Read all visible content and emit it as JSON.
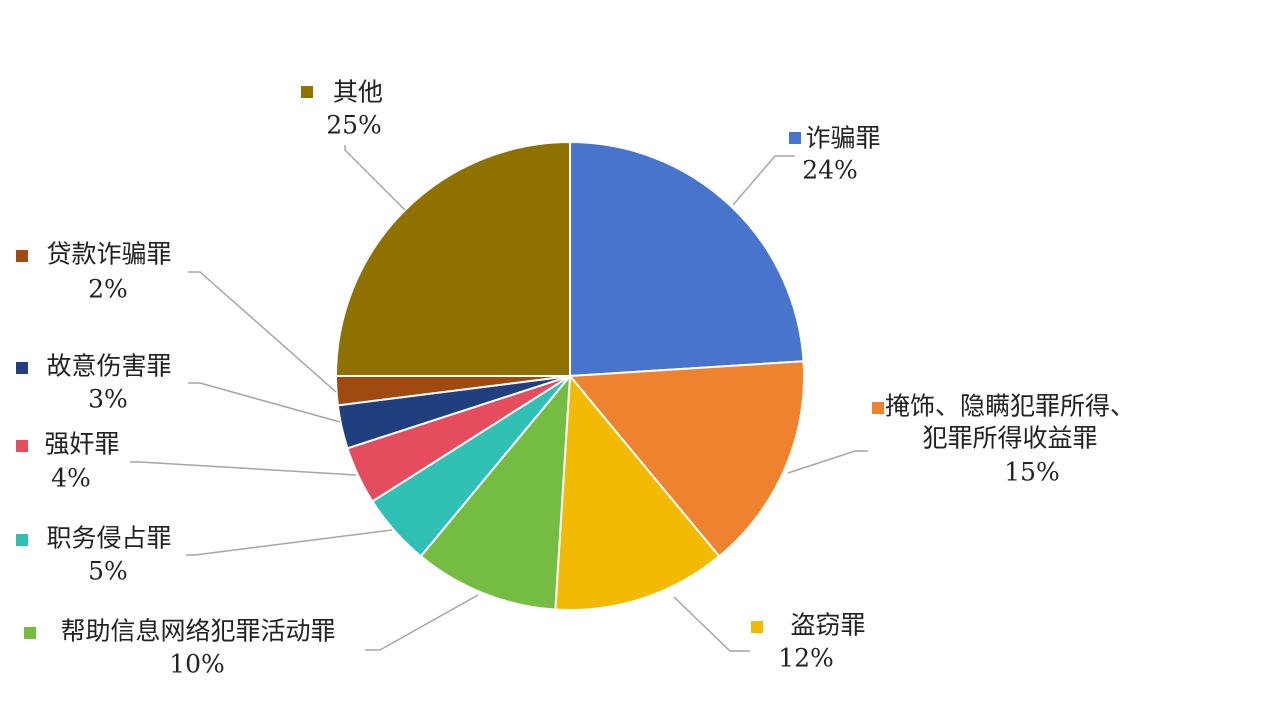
{
  "chart_data": {
    "type": "pie",
    "title": "",
    "slices": [
      {
        "name": "诈骗罪",
        "percent_label": "24%",
        "value": 24,
        "color": "#4874CB"
      },
      {
        "name": "掩饰、隐瞒犯罪所得、犯罪所得收益罪",
        "name_lines": [
          "掩饰、隐瞒犯罪所得、",
          "犯罪所得收益罪"
        ],
        "percent_label": "15%",
        "value": 15,
        "color": "#EE822F"
      },
      {
        "name": "盗窃罪",
        "percent_label": "12%",
        "value": 12,
        "color": "#F2BA02"
      },
      {
        "name": "帮助信息网络犯罪活动罪",
        "percent_label": "10%",
        "value": 10,
        "color": "#75BD42"
      },
      {
        "name": "职务侵占罪",
        "percent_label": "5%",
        "value": 5,
        "color": "#30C0B4"
      },
      {
        "name": "强奸罪",
        "percent_label": "4%",
        "value": 4,
        "color": "#E54C5E"
      },
      {
        "name": "故意伤害罪",
        "percent_label": "3%",
        "value": 3,
        "color": "#203F7E"
      },
      {
        "name": "贷款诈骗罪",
        "percent_label": "2%",
        "value": 2,
        "color": "#A04A10"
      },
      {
        "name": "其他",
        "percent_label": "25%",
        "value": 25,
        "color": "#8F7100"
      }
    ],
    "legend": "none",
    "data_labels": "outside with leader lines"
  }
}
